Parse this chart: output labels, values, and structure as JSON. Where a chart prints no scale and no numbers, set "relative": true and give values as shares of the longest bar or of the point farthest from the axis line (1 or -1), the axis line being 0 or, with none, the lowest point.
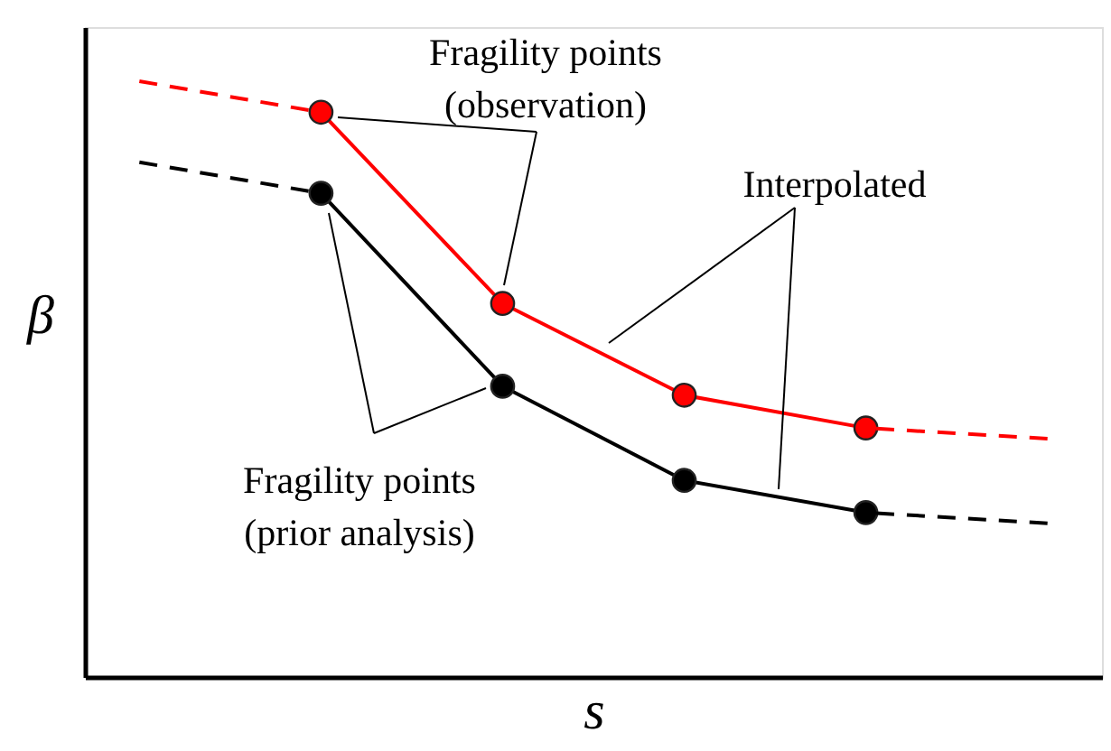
{
  "chart_data": {
    "type": "line",
    "relative": true,
    "xlabel": "s",
    "ylabel": "β",
    "grid": false,
    "tick_labels": false,
    "categories": [
      null,
      null,
      null,
      null,
      null,
      null
    ],
    "series": [
      {
        "color": "#ff0000",
        "values": [
          null,
          0.948,
          0.627,
          0.473,
          0.418,
          null
        ],
        "marker": "circle",
        "line_style": "solid"
      },
      {
        "color": "#ff0000",
        "values": [
          1.0,
          0.948,
          null,
          null,
          0.418,
          0.4
        ],
        "marker": "none",
        "line_style": "dashed"
      },
      {
        "color": "#000000",
        "values": [
          null,
          0.812,
          0.488,
          0.33,
          0.276,
          null
        ],
        "marker": "circle",
        "line_style": "solid"
      },
      {
        "color": "#000000",
        "values": [
          0.864,
          0.812,
          null,
          null,
          0.276,
          0.258
        ],
        "marker": "none",
        "line_style": "dashed"
      }
    ],
    "annotations": [
      "Fragility points\n(observation)",
      "Interpolated",
      "Fragility points\n(prior analysis)"
    ]
  }
}
